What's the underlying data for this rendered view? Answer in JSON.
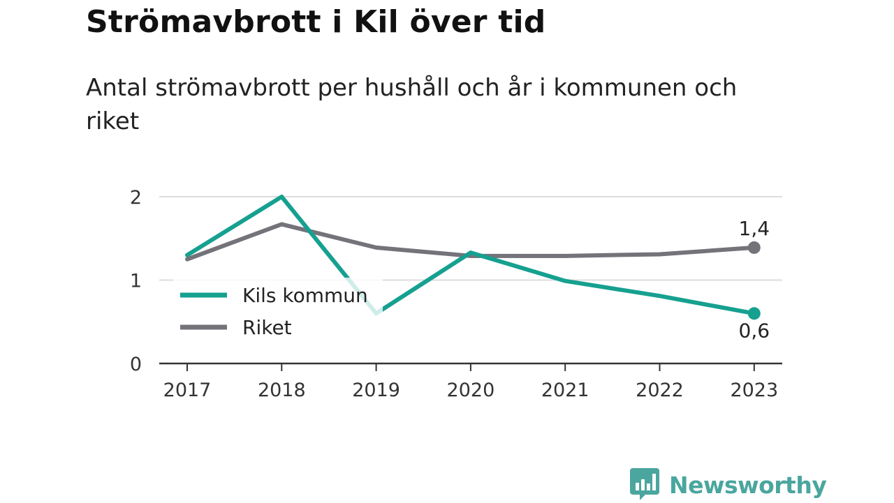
{
  "title": "Strömavbrott i Kil över tid",
  "subtitle": "Antal strömavbrott per hushåll och år i kommunen och riket",
  "brand": {
    "name": "Newsworthy",
    "icon": "bar-chart-speech-icon",
    "color": "#4aa69e"
  },
  "chart_data": {
    "type": "line",
    "title": "Strömavbrott i Kil över tid",
    "subtitle": "Antal strömavbrott per hushåll och år i kommunen och riket",
    "x": [
      "2017",
      "2018",
      "2019",
      "2020",
      "2021",
      "2022",
      "2023"
    ],
    "ylim": [
      0,
      2
    ],
    "yticks": [
      "0",
      "1",
      "2"
    ],
    "grid": true,
    "legend": "inside-left",
    "series": [
      {
        "name": "Kils kommun",
        "color": "#16a090",
        "values": [
          1.3,
          2.0,
          0.6,
          1.33,
          0.99,
          0.81,
          0.6
        ],
        "end_label": "0,6"
      },
      {
        "name": "Riket",
        "color": "#74737a",
        "values": [
          1.25,
          1.67,
          1.39,
          1.29,
          1.29,
          1.31,
          1.39
        ],
        "end_label": "1,4"
      }
    ]
  }
}
